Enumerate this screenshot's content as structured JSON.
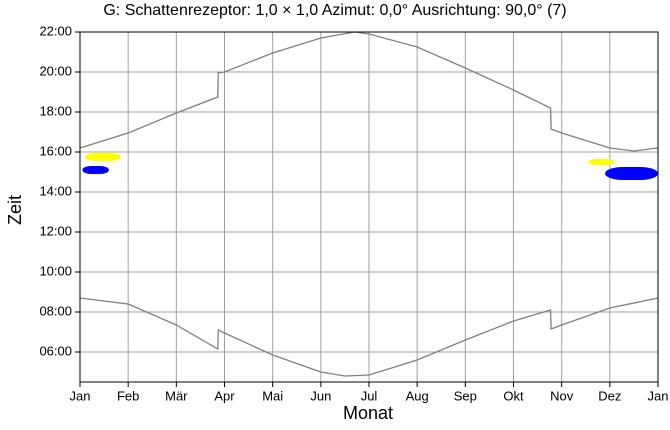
{
  "chart_data": {
    "type": "line",
    "title": "G: Schattenrezeptor: 1,0 × 1,0  Azimut: 0,0°  Ausrichtung: 90,0° (7)",
    "x_label": "Monat",
    "y_label": "Zeit",
    "xlim": [
      0,
      12
    ],
    "xticks": [
      {
        "value": 0,
        "label": "Jan"
      },
      {
        "value": 1,
        "label": "Feb"
      },
      {
        "value": 2,
        "label": "Mär"
      },
      {
        "value": 3,
        "label": "Apr"
      },
      {
        "value": 4,
        "label": "Mai"
      },
      {
        "value": 5,
        "label": "Jun"
      },
      {
        "value": 6,
        "label": "Jul"
      },
      {
        "value": 7,
        "label": "Aug"
      },
      {
        "value": 8,
        "label": "Sep"
      },
      {
        "value": 9,
        "label": "Okt"
      },
      {
        "value": 10,
        "label": "Nov"
      },
      {
        "value": 11,
        "label": "Dez"
      },
      {
        "value": 12,
        "label": "Jan"
      }
    ],
    "ylim": [
      4.5,
      22
    ],
    "yticks": [
      {
        "value": 6,
        "label": "06:00"
      },
      {
        "value": 8,
        "label": "08:00"
      },
      {
        "value": 10,
        "label": "10:00"
      },
      {
        "value": 12,
        "label": "12:00"
      },
      {
        "value": 14,
        "label": "14:00"
      },
      {
        "value": 16,
        "label": "16:00"
      },
      {
        "value": 18,
        "label": "18:00"
      },
      {
        "value": 20,
        "label": "20:00"
      },
      {
        "value": 22,
        "label": "22:00"
      }
    ],
    "grid": true,
    "series": [
      {
        "color": "#808080",
        "x": [
          0,
          1,
          2,
          2.86,
          2.87,
          3,
          4,
          5,
          5.7,
          6,
          7,
          8,
          9,
          9.77,
          9.78,
          10,
          11,
          11.5,
          12
        ],
        "values": [
          16.2,
          16.95,
          17.95,
          18.75,
          19.95,
          20.0,
          20.95,
          21.7,
          22.0,
          21.9,
          21.25,
          20.2,
          19.1,
          18.2,
          17.15,
          16.95,
          16.2,
          16.05,
          16.2
        ]
      },
      {
        "color": "#808080",
        "x": [
          0,
          1,
          2,
          2.86,
          2.87,
          3,
          4,
          5,
          5.5,
          6,
          7,
          8,
          9,
          9.77,
          9.78,
          10,
          11,
          12
        ],
        "values": [
          8.7,
          8.4,
          7.35,
          6.15,
          7.1,
          6.95,
          5.85,
          5.0,
          4.8,
          4.85,
          5.6,
          6.6,
          7.55,
          8.1,
          7.15,
          7.35,
          8.2,
          8.7
        ]
      }
    ],
    "regions": [
      {
        "color": "#0000ff",
        "x": [
          0.05,
          0.6
        ],
        "y": [
          14.9,
          15.3
        ]
      },
      {
        "color": "#ffff00",
        "x": [
          0.1,
          0.85
        ],
        "y": [
          15.55,
          15.95
        ]
      },
      {
        "color": "#ffff00",
        "x": [
          10.55,
          11.1
        ],
        "y": [
          15.35,
          15.65
        ]
      },
      {
        "color": "#0000ff",
        "x": [
          10.9,
          12
        ],
        "y": [
          14.6,
          15.25
        ]
      }
    ]
  }
}
